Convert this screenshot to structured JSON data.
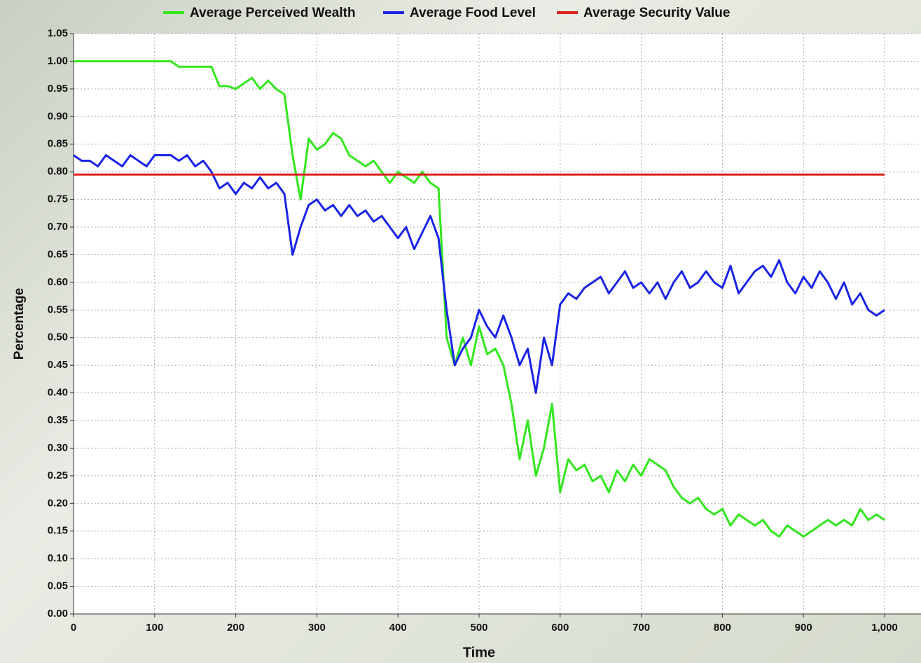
{
  "chart_data": {
    "type": "line",
    "xlabel": "Time",
    "ylabel": "Percentage",
    "x": [
      0,
      10,
      20,
      30,
      40,
      50,
      60,
      70,
      80,
      90,
      100,
      110,
      120,
      130,
      140,
      150,
      160,
      170,
      180,
      190,
      200,
      210,
      220,
      230,
      240,
      250,
      260,
      270,
      280,
      290,
      300,
      310,
      320,
      330,
      340,
      350,
      360,
      370,
      380,
      390,
      400,
      410,
      420,
      430,
      440,
      450,
      460,
      470,
      480,
      490,
      500,
      510,
      520,
      530,
      540,
      550,
      560,
      570,
      580,
      590,
      600,
      610,
      620,
      630,
      640,
      650,
      660,
      670,
      680,
      690,
      700,
      710,
      720,
      730,
      740,
      750,
      760,
      770,
      780,
      790,
      800,
      810,
      820,
      830,
      840,
      850,
      860,
      870,
      880,
      890,
      900,
      910,
      920,
      930,
      940,
      950,
      960,
      970,
      980,
      990,
      1000
    ],
    "series": [
      {
        "name": "Average Perceived Wealth",
        "color": "#33e61e",
        "values": [
          1.0,
          1.0,
          1.0,
          1.0,
          1.0,
          1.0,
          1.0,
          1.0,
          1.0,
          1.0,
          1.0,
          1.0,
          1.0,
          0.99,
          0.99,
          0.99,
          0.99,
          0.99,
          0.955,
          0.955,
          0.95,
          0.96,
          0.97,
          0.95,
          0.965,
          0.95,
          0.94,
          0.83,
          0.75,
          0.86,
          0.84,
          0.85,
          0.87,
          0.86,
          0.83,
          0.82,
          0.81,
          0.82,
          0.8,
          0.78,
          0.8,
          0.79,
          0.78,
          0.8,
          0.78,
          0.77,
          0.5,
          0.45,
          0.5,
          0.45,
          0.52,
          0.47,
          0.48,
          0.45,
          0.38,
          0.28,
          0.35,
          0.25,
          0.3,
          0.38,
          0.22,
          0.28,
          0.26,
          0.27,
          0.24,
          0.25,
          0.22,
          0.26,
          0.24,
          0.27,
          0.25,
          0.28,
          0.27,
          0.26,
          0.23,
          0.21,
          0.2,
          0.21,
          0.19,
          0.18,
          0.19,
          0.16,
          0.18,
          0.17,
          0.16,
          0.17,
          0.15,
          0.14,
          0.16,
          0.15,
          0.14,
          0.15,
          0.16,
          0.17,
          0.16,
          0.17,
          0.16,
          0.19,
          0.17,
          0.18,
          0.17
        ]
      },
      {
        "name": "Average Food Level",
        "color": "#1a24e6",
        "values": [
          0.83,
          0.82,
          0.82,
          0.81,
          0.83,
          0.82,
          0.81,
          0.83,
          0.82,
          0.81,
          0.83,
          0.83,
          0.83,
          0.82,
          0.83,
          0.81,
          0.82,
          0.8,
          0.77,
          0.78,
          0.76,
          0.78,
          0.77,
          0.79,
          0.77,
          0.78,
          0.76,
          0.65,
          0.7,
          0.74,
          0.75,
          0.73,
          0.74,
          0.72,
          0.74,
          0.72,
          0.73,
          0.71,
          0.72,
          0.7,
          0.68,
          0.7,
          0.66,
          0.69,
          0.72,
          0.68,
          0.55,
          0.45,
          0.48,
          0.5,
          0.55,
          0.52,
          0.5,
          0.54,
          0.5,
          0.45,
          0.48,
          0.4,
          0.5,
          0.45,
          0.56,
          0.58,
          0.57,
          0.59,
          0.6,
          0.61,
          0.58,
          0.6,
          0.62,
          0.59,
          0.6,
          0.58,
          0.6,
          0.57,
          0.6,
          0.62,
          0.59,
          0.6,
          0.62,
          0.6,
          0.59,
          0.63,
          0.58,
          0.6,
          0.62,
          0.63,
          0.61,
          0.64,
          0.6,
          0.58,
          0.61,
          0.59,
          0.62,
          0.6,
          0.57,
          0.6,
          0.56,
          0.58,
          0.55,
          0.54,
          0.55
        ]
      },
      {
        "name": "Average Security Value",
        "color": "#e0201a",
        "values": [
          0.795,
          0.795,
          0.795,
          0.795,
          0.795,
          0.795,
          0.795,
          0.795,
          0.795,
          0.795,
          0.795,
          0.795,
          0.795,
          0.795,
          0.795,
          0.795,
          0.795,
          0.795,
          0.795,
          0.795,
          0.795,
          0.795,
          0.795,
          0.795,
          0.795,
          0.795,
          0.795,
          0.795,
          0.795,
          0.795,
          0.795,
          0.795,
          0.795,
          0.795,
          0.795,
          0.795,
          0.795,
          0.795,
          0.795,
          0.795,
          0.795,
          0.795,
          0.795,
          0.795,
          0.795,
          0.795,
          0.795,
          0.795,
          0.795,
          0.795,
          0.795,
          0.795,
          0.795,
          0.795,
          0.795,
          0.795,
          0.795,
          0.795,
          0.795,
          0.795,
          0.795,
          0.795,
          0.795,
          0.795,
          0.795,
          0.795,
          0.795,
          0.795,
          0.795,
          0.795,
          0.795,
          0.795,
          0.795,
          0.795,
          0.795,
          0.795,
          0.795,
          0.795,
          0.795,
          0.795,
          0.795,
          0.795,
          0.795,
          0.795,
          0.795,
          0.795,
          0.795,
          0.795,
          0.795,
          0.795,
          0.795,
          0.795,
          0.795,
          0.795,
          0.795,
          0.795,
          0.795,
          0.795,
          0.795,
          0.795,
          0.795
        ]
      }
    ],
    "xlim": [
      0,
      1045
    ],
    "ylim": [
      0,
      1.05
    ],
    "xticks": [
      0,
      100,
      200,
      300,
      400,
      500,
      600,
      700,
      800,
      900,
      {
        "value": 1000,
        "label": "1,000"
      }
    ],
    "yticks": [
      {
        "value": 0,
        "label": "0.00"
      },
      0.05,
      {
        "value": 0.1,
        "label": "0.10"
      },
      0.15,
      {
        "value": 0.2,
        "label": "0.20"
      },
      0.25,
      {
        "value": 0.3,
        "label": "0.30"
      },
      0.35,
      {
        "value": 0.4,
        "label": "0.40"
      },
      0.45,
      {
        "value": 0.5,
        "label": "0.50"
      },
      0.55,
      {
        "value": 0.6,
        "label": "0.60"
      },
      0.65,
      {
        "value": 0.7,
        "label": "0.70"
      },
      0.75,
      {
        "value": 0.8,
        "label": "0.80"
      },
      0.85,
      {
        "value": 0.9,
        "label": "0.90"
      },
      0.95,
      {
        "value": 1,
        "label": "1.00"
      },
      1.05
    ],
    "grid": true,
    "legend": "top"
  }
}
